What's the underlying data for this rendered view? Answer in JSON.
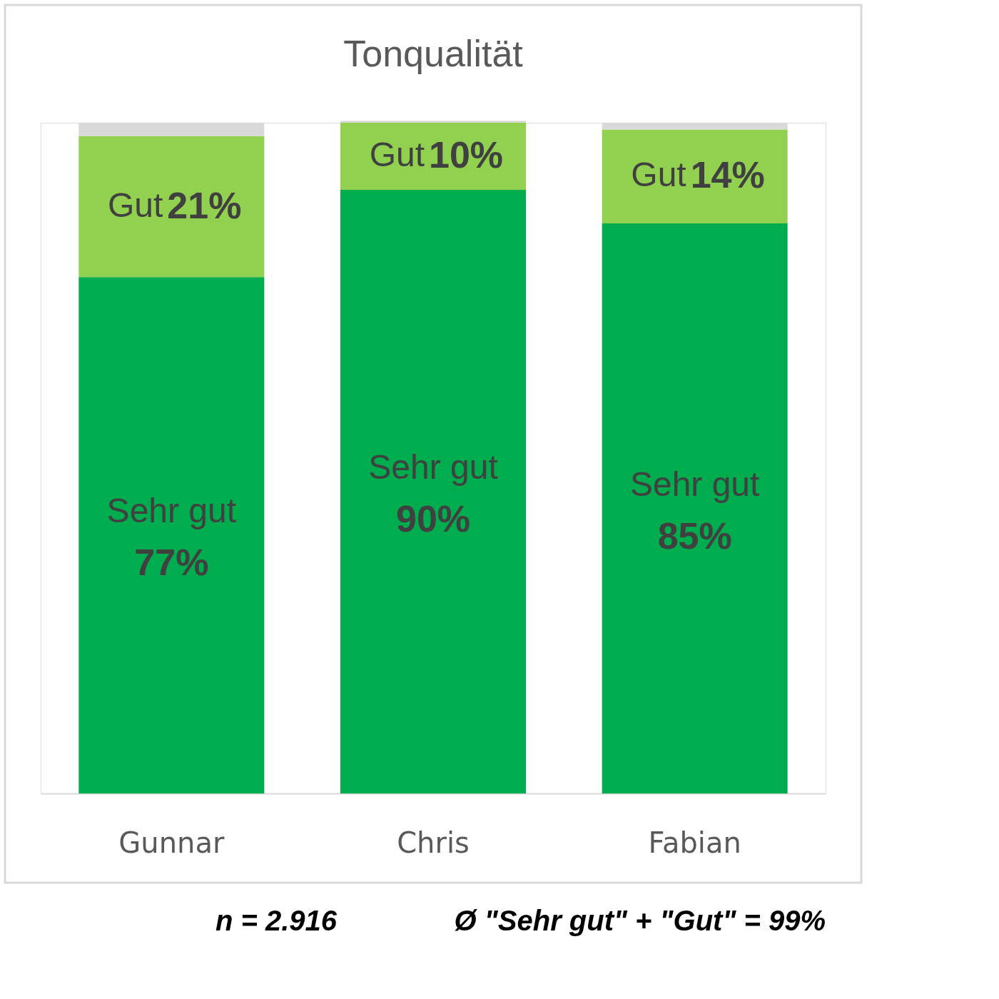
{
  "chart_data": {
    "type": "bar",
    "title": "Tonqualität",
    "stacked": true,
    "categories": [
      "Gunnar",
      "Chris",
      "Fabian"
    ],
    "series": [
      {
        "name": "Sehr gut",
        "color": "#00ad4e",
        "values": [
          77,
          90,
          85
        ],
        "value_labels": [
          "77%",
          "90%",
          "85%"
        ]
      },
      {
        "name": "Gut",
        "color": "#92d050",
        "values": [
          21,
          10,
          14
        ],
        "value_labels": [
          "21%",
          "10%",
          "14%"
        ]
      },
      {
        "color": "#d9d9d9",
        "values": [
          2,
          0.3,
          1
        ]
      }
    ],
    "ylim": [
      0,
      100
    ],
    "tick_labels": "x",
    "grid": false,
    "legend": false,
    "annotations": [
      "n =  2.916",
      "Ø \"Sehr gut\" + \"Gut\" =  99%"
    ]
  }
}
